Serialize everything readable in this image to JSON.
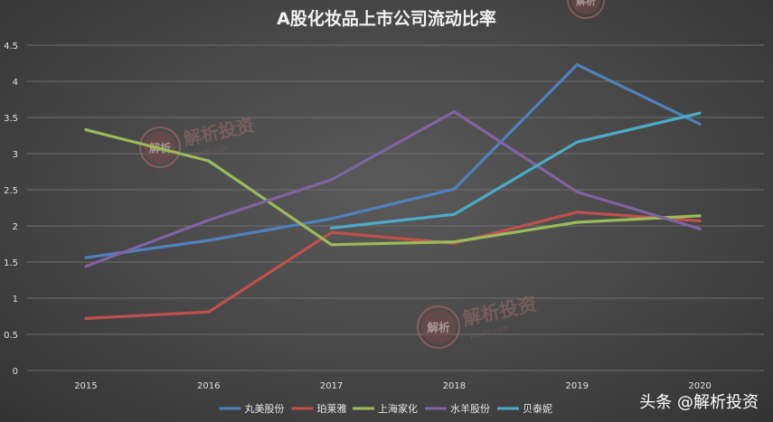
{
  "chart_data": {
    "type": "line",
    "title": "A股化妆品上市公司流动比率",
    "xlabel": "",
    "ylabel": "",
    "categories": [
      "2015",
      "2016",
      "2017",
      "2018",
      "2019",
      "2020"
    ],
    "ylim": [
      0,
      4.5
    ],
    "yticks": [
      "0",
      "0.5",
      "1",
      "1.5",
      "2",
      "2.5",
      "3",
      "3.5",
      "4",
      "4.5"
    ],
    "grid": true,
    "legend_position": "bottom",
    "series": [
      {
        "name": "丸美股份",
        "color": "#4f81bd",
        "values": [
          1.56,
          1.8,
          2.1,
          2.51,
          4.23,
          3.41
        ]
      },
      {
        "name": "珀莱雅",
        "color": "#c0504d",
        "values": [
          0.72,
          0.81,
          1.91,
          1.76,
          2.19,
          2.07
        ]
      },
      {
        "name": "上海家化",
        "color": "#9bbb59",
        "values": [
          3.33,
          2.9,
          1.74,
          1.78,
          2.05,
          2.14
        ]
      },
      {
        "name": "水羊股份",
        "color": "#8064a2",
        "values": [
          1.44,
          2.08,
          2.64,
          3.58,
          2.47,
          1.96
        ]
      },
      {
        "name": "贝泰妮",
        "color": "#4bacc6",
        "values": [
          null,
          null,
          1.97,
          2.16,
          3.16,
          3.56
        ]
      }
    ]
  },
  "watermark": {
    "seal_text": "解析",
    "brand": "解析投资",
    "domain": "jiexitz.com"
  },
  "brand_mark": "头条 @解析投资"
}
